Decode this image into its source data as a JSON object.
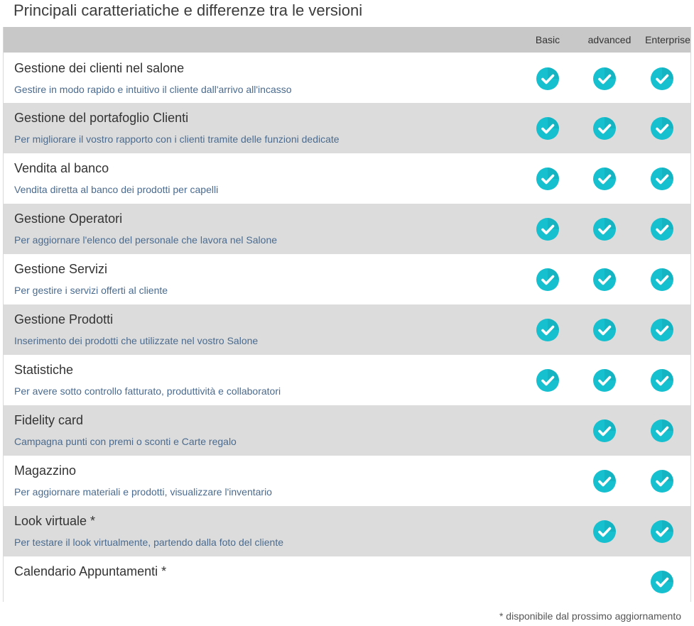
{
  "page": {
    "title": "Principali caratteriatiche e differenze tra le versioni",
    "footnote": "* disponibile dal prossimo aggiornamento"
  },
  "colors": {
    "check": "#17c0cf",
    "header_bg": "#c8c8c8",
    "row_alt_bg": "#dcdcdc",
    "desc_text": "#4a6b8f"
  },
  "table": {
    "columns": [
      "Basic",
      "advanced",
      "Enterprise"
    ],
    "rows": [
      {
        "title": "Gestione dei clienti nel salone",
        "desc": "Gestire in modo rapido e intuitivo il cliente dall'arrivo all'incasso",
        "basic": true,
        "advanced": true,
        "enterprise": true
      },
      {
        "title": "Gestione del portafoglio Clienti",
        "desc": "Per migliorare il vostro rapporto con i clienti tramite delle funzioni dedicate",
        "basic": true,
        "advanced": true,
        "enterprise": true
      },
      {
        "title": "Vendita al banco",
        "desc": "Vendita diretta al banco dei prodotti per capelli",
        "basic": true,
        "advanced": true,
        "enterprise": true
      },
      {
        "title": "Gestione Operatori",
        "desc": "Per aggiornare l'elenco del personale che lavora nel Salone",
        "basic": true,
        "advanced": true,
        "enterprise": true
      },
      {
        "title": "Gestione Servizi",
        "desc": "Per gestire i servizi offerti al cliente",
        "basic": true,
        "advanced": true,
        "enterprise": true
      },
      {
        "title": "Gestione Prodotti",
        "desc": "Inserimento dei prodotti che utilizzate nel vostro Salone",
        "basic": true,
        "advanced": true,
        "enterprise": true
      },
      {
        "title": "Statistiche",
        "desc": "Per avere sotto controllo fatturato, produttività e collaboratori",
        "basic": true,
        "advanced": true,
        "enterprise": true
      },
      {
        "title": "Fidelity card",
        "desc": "Campagna punti con premi o sconti e Carte regalo",
        "basic": false,
        "advanced": true,
        "enterprise": true
      },
      {
        "title": "Magazzino",
        "desc": "Per aggiornare materiali e prodotti, visualizzare l'inventario",
        "basic": false,
        "advanced": true,
        "enterprise": true
      },
      {
        "title": "Look virtuale *",
        "desc": "Per testare il look virtualmente, partendo dalla foto del cliente",
        "basic": false,
        "advanced": true,
        "enterprise": true
      },
      {
        "title": "Calendario Appuntamenti *",
        "desc": "",
        "basic": false,
        "advanced": false,
        "enterprise": true
      }
    ]
  }
}
